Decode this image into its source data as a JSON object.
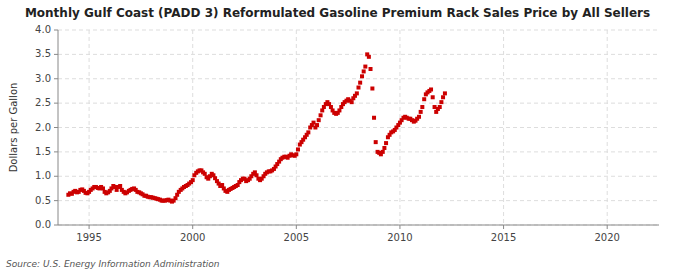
{
  "chart_data": {
    "type": "scatter",
    "title": "Monthly Gulf Coast (PADD 3) Reformulated Gasoline Premium Rack Sales Price by All Sellers",
    "ylabel": "Dollars per Gallon",
    "source": "Source: U.S. Energy Information Administration",
    "color": "#CC0000",
    "marker": "square",
    "grid": true,
    "xlim": [
      1993.5,
      2022.5
    ],
    "ylim": [
      0.0,
      4.0
    ],
    "xticks": [
      1995,
      2000,
      2005,
      2010,
      2015,
      2020
    ],
    "yticks": [
      {
        "value": 0.0,
        "label": "0.0"
      },
      0.5,
      {
        "value": 1.0,
        "label": "1.0"
      },
      1.5,
      {
        "value": 2.0,
        "label": "2.0"
      },
      2.5,
      {
        "value": 3.0,
        "label": "3.0"
      },
      3.5,
      {
        "value": 4.0,
        "label": "4.0"
      }
    ],
    "x": [
      1994.0,
      1994.08,
      1994.17,
      1994.25,
      1994.33,
      1994.42,
      1994.5,
      1994.58,
      1994.67,
      1994.75,
      1994.83,
      1994.92,
      1995.0,
      1995.08,
      1995.17,
      1995.25,
      1995.33,
      1995.42,
      1995.5,
      1995.58,
      1995.67,
      1995.75,
      1995.83,
      1995.92,
      1996.0,
      1996.08,
      1996.17,
      1996.25,
      1996.33,
      1996.42,
      1996.5,
      1996.58,
      1996.67,
      1996.75,
      1996.83,
      1996.92,
      1997.0,
      1997.08,
      1997.17,
      1997.25,
      1997.33,
      1997.42,
      1997.5,
      1997.58,
      1997.67,
      1997.75,
      1997.83,
      1997.92,
      1998.0,
      1998.08,
      1998.17,
      1998.25,
      1998.33,
      1998.42,
      1998.5,
      1998.58,
      1998.67,
      1998.75,
      1998.83,
      1998.92,
      1999.0,
      1999.08,
      1999.17,
      1999.25,
      1999.33,
      1999.42,
      1999.5,
      1999.58,
      1999.67,
      1999.75,
      1999.83,
      1999.92,
      2000.0,
      2000.08,
      2000.17,
      2000.25,
      2000.33,
      2000.42,
      2000.5,
      2000.58,
      2000.67,
      2000.75,
      2000.83,
      2000.92,
      2001.0,
      2001.08,
      2001.17,
      2001.25,
      2001.33,
      2001.42,
      2001.5,
      2001.58,
      2001.67,
      2001.75,
      2001.83,
      2001.92,
      2002.0,
      2002.08,
      2002.17,
      2002.25,
      2002.33,
      2002.42,
      2002.5,
      2002.58,
      2002.67,
      2002.75,
      2002.83,
      2002.92,
      2003.0,
      2003.08,
      2003.17,
      2003.25,
      2003.33,
      2003.42,
      2003.5,
      2003.58,
      2003.67,
      2003.75,
      2003.83,
      2003.92,
      2004.0,
      2004.08,
      2004.17,
      2004.25,
      2004.33,
      2004.42,
      2004.5,
      2004.58,
      2004.67,
      2004.75,
      2004.83,
      2004.92,
      2005.0,
      2005.08,
      2005.17,
      2005.25,
      2005.33,
      2005.42,
      2005.5,
      2005.58,
      2005.67,
      2005.75,
      2005.83,
      2005.92,
      2006.0,
      2006.08,
      2006.17,
      2006.25,
      2006.33,
      2006.42,
      2006.5,
      2006.58,
      2006.67,
      2006.75,
      2006.83,
      2006.92,
      2007.0,
      2007.08,
      2007.17,
      2007.25,
      2007.33,
      2007.42,
      2007.5,
      2007.58,
      2007.67,
      2007.75,
      2007.83,
      2007.92,
      2008.0,
      2008.08,
      2008.17,
      2008.25,
      2008.33,
      2008.42,
      2008.5,
      2008.58,
      2008.67,
      2008.75,
      2008.83,
      2008.92,
      2009.0,
      2009.08,
      2009.17,
      2009.25,
      2009.33,
      2009.42,
      2009.5,
      2009.58,
      2009.67,
      2009.75,
      2009.83,
      2009.92,
      2010.0,
      2010.08,
      2010.17,
      2010.25,
      2010.33,
      2010.42,
      2010.5,
      2010.58,
      2010.67,
      2010.75,
      2010.83,
      2010.92,
      2011.0,
      2011.08,
      2011.17,
      2011.25,
      2011.33,
      2011.42,
      2011.5,
      2011.58,
      2011.67,
      2011.75,
      2011.83,
      2011.92,
      2012.0,
      2012.08,
      2012.17
    ],
    "values": [
      0.62,
      0.65,
      0.64,
      0.68,
      0.7,
      0.67,
      0.68,
      0.72,
      0.73,
      0.7,
      0.66,
      0.65,
      0.68,
      0.72,
      0.75,
      0.78,
      0.78,
      0.76,
      0.75,
      0.78,
      0.75,
      0.68,
      0.65,
      0.67,
      0.7,
      0.75,
      0.8,
      0.78,
      0.72,
      0.78,
      0.8,
      0.72,
      0.68,
      0.65,
      0.67,
      0.7,
      0.72,
      0.74,
      0.75,
      0.72,
      0.68,
      0.67,
      0.65,
      0.63,
      0.6,
      0.6,
      0.58,
      0.57,
      0.57,
      0.56,
      0.55,
      0.54,
      0.53,
      0.52,
      0.5,
      0.5,
      0.5,
      0.51,
      0.52,
      0.5,
      0.48,
      0.5,
      0.55,
      0.62,
      0.68,
      0.72,
      0.75,
      0.78,
      0.8,
      0.82,
      0.85,
      0.88,
      0.92,
      1.02,
      1.07,
      1.1,
      1.12,
      1.12,
      1.08,
      1.05,
      0.98,
      0.95,
      1.0,
      1.05,
      1.02,
      0.96,
      0.9,
      0.85,
      0.8,
      0.82,
      0.75,
      0.7,
      0.68,
      0.72,
      0.74,
      0.76,
      0.78,
      0.8,
      0.82,
      0.88,
      0.92,
      0.95,
      0.95,
      0.9,
      0.92,
      0.95,
      1.0,
      1.05,
      1.08,
      1.02,
      0.95,
      0.92,
      0.95,
      1.0,
      1.05,
      1.08,
      1.1,
      1.1,
      1.12,
      1.15,
      1.2,
      1.25,
      1.3,
      1.35,
      1.38,
      1.4,
      1.4,
      1.38,
      1.42,
      1.45,
      1.43,
      1.42,
      1.45,
      1.55,
      1.65,
      1.7,
      1.75,
      1.8,
      1.85,
      1.9,
      2.0,
      2.05,
      2.1,
      2.0,
      2.05,
      2.15,
      2.25,
      2.35,
      2.42,
      2.48,
      2.52,
      2.48,
      2.42,
      2.35,
      2.3,
      2.28,
      2.3,
      2.35,
      2.42,
      2.48,
      2.52,
      2.55,
      2.58,
      2.55,
      2.52,
      2.6,
      2.65,
      2.7,
      2.82,
      2.92,
      3.05,
      3.15,
      3.25,
      3.5,
      3.45,
      3.2,
      2.8,
      2.2,
      1.7,
      1.5,
      1.48,
      1.45,
      1.5,
      1.58,
      1.68,
      1.8,
      1.85,
      1.9,
      1.92,
      1.95,
      2.0,
      2.05,
      2.1,
      2.15,
      2.2,
      2.22,
      2.2,
      2.18,
      2.18,
      2.15,
      2.12,
      2.14,
      2.18,
      2.22,
      2.32,
      2.42,
      2.58,
      2.68,
      2.72,
      2.75,
      2.78,
      2.62,
      2.42,
      2.32,
      2.38,
      2.42,
      2.52,
      2.62,
      2.7
    ]
  }
}
